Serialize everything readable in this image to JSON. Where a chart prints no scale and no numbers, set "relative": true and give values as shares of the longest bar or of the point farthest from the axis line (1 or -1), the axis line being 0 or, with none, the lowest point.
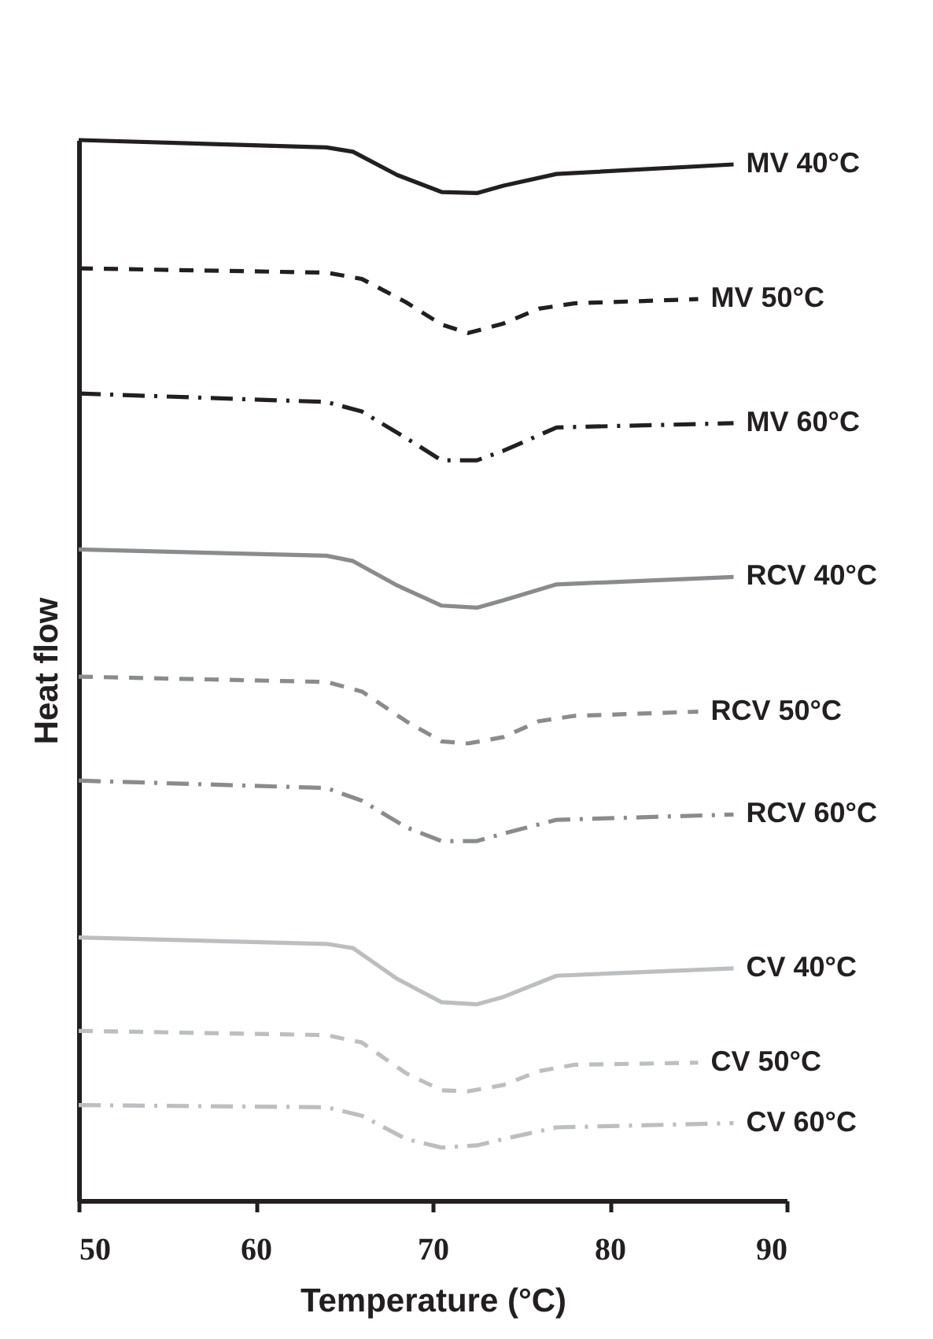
{
  "chart_data": {
    "type": "line",
    "relative": true,
    "xlabel": "Temperature (°C)",
    "ylabel": "Heat flow",
    "xlim": [
      50,
      90
    ],
    "xticks": [
      50,
      60,
      70,
      80,
      90
    ],
    "series": [
      {
        "name": "MV  40°C",
        "color": "#231f20",
        "line_style": "solid",
        "x": [
          50,
          64,
          65.5,
          68,
          70.5,
          72.5,
          74,
          77,
          87
        ],
        "values": [
          1.0,
          0.993,
          0.989,
          0.967,
          0.951,
          0.95,
          0.957,
          0.968,
          0.977
        ]
      },
      {
        "name": "MV  50°C",
        "color": "#231f20",
        "line_style": "dashed",
        "x": [
          50,
          64,
          66,
          68.5,
          70.5,
          72,
          74,
          76,
          78,
          85
        ],
        "values": [
          0.879,
          0.875,
          0.869,
          0.847,
          0.826,
          0.818,
          0.827,
          0.841,
          0.846,
          0.85
        ]
      },
      {
        "name": "MV  60°C",
        "color": "#231f20",
        "line_style": "dashdot",
        "x": [
          50,
          64,
          66,
          68.5,
          70.5,
          72.5,
          74,
          77,
          87
        ],
        "values": [
          0.761,
          0.753,
          0.744,
          0.719,
          0.698,
          0.698,
          0.707,
          0.729,
          0.733
        ]
      },
      {
        "name": "RCV  40°C",
        "color": "#8a8b8d",
        "line_style": "solid",
        "x": [
          50,
          64,
          65.5,
          68,
          70.5,
          72.5,
          74,
          77,
          87
        ],
        "values": [
          0.614,
          0.608,
          0.603,
          0.58,
          0.561,
          0.559,
          0.566,
          0.581,
          0.588
        ]
      },
      {
        "name": "RCV  50°C",
        "color": "#8a8b8d",
        "line_style": "dashed",
        "x": [
          50,
          64,
          66,
          68.5,
          70.5,
          72,
          74,
          76,
          78,
          85
        ],
        "values": [
          0.494,
          0.489,
          0.48,
          0.452,
          0.433,
          0.431,
          0.437,
          0.452,
          0.457,
          0.461
        ]
      },
      {
        "name": "RCV  60°C",
        "color": "#8a8b8d",
        "line_style": "dashdot",
        "x": [
          50,
          64,
          66,
          68.5,
          70.5,
          72.5,
          74,
          77,
          87
        ],
        "values": [
          0.396,
          0.389,
          0.377,
          0.352,
          0.339,
          0.339,
          0.346,
          0.359,
          0.364
        ]
      },
      {
        "name": "CV  40°C",
        "color": "#bcbec0",
        "line_style": "solid",
        "x": [
          50,
          64,
          65.5,
          68,
          70.5,
          72.5,
          74,
          77,
          87
        ],
        "values": [
          0.248,
          0.242,
          0.238,
          0.209,
          0.187,
          0.185,
          0.192,
          0.212,
          0.219
        ]
      },
      {
        "name": "CV  50°C",
        "color": "#bcbec0",
        "line_style": "dashed",
        "x": [
          50,
          64,
          66,
          68.5,
          70.5,
          72,
          74,
          76,
          78,
          85
        ],
        "values": [
          0.16,
          0.156,
          0.149,
          0.12,
          0.104,
          0.103,
          0.109,
          0.122,
          0.128,
          0.13
        ]
      },
      {
        "name": "CV  60°C",
        "color": "#bcbec0",
        "line_style": "dashdot",
        "x": [
          50,
          64,
          66,
          68.5,
          70.5,
          72.5,
          74,
          77,
          87
        ],
        "values": [
          0.09,
          0.088,
          0.08,
          0.058,
          0.05,
          0.052,
          0.058,
          0.069,
          0.073
        ]
      }
    ]
  }
}
